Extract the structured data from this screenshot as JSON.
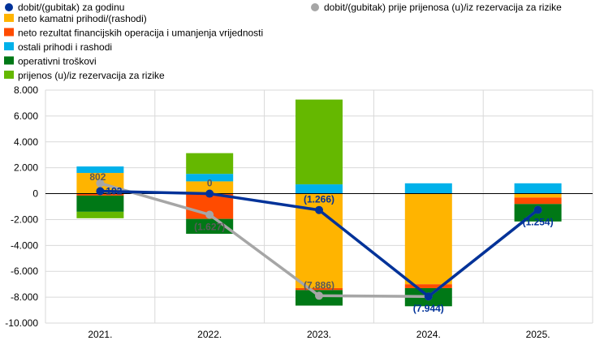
{
  "chart_data": {
    "type": "bar",
    "stacked": true,
    "categories": [
      "2021.",
      "2022.",
      "2023.",
      "2024.",
      "2025."
    ],
    "ylim": [
      -10000,
      8000
    ],
    "yticks": [
      8000,
      6000,
      4000,
      2000,
      0,
      -2000,
      -4000,
      -6000,
      -8000,
      -10000
    ],
    "ytick_labels": [
      "8.000",
      "6.000",
      "4.000",
      "2.000",
      "0",
      "-2.000",
      "-4.000",
      "-6.000",
      "-8.000",
      "-10.000"
    ],
    "grid": true,
    "legend_position": "top-left",
    "bar_series": [
      {
        "name": "neto kamatni prihodi/(rashodi)",
        "color": "#FFB400",
        "values": [
          1600,
          950,
          -7300,
          -7000,
          -300
        ]
      },
      {
        "name": "neto rezultat financijskih operacija i umanjenja vrijednosti",
        "color": "#FF4B00",
        "values": [
          -150,
          -1950,
          -150,
          -300,
          -500
        ]
      },
      {
        "name": "ostali prihodi i rashodi",
        "color": "#00B1EA",
        "values": [
          500,
          580,
          720,
          800,
          800
        ]
      },
      {
        "name": "operativni troškovi",
        "color": "#007816",
        "values": [
          -1250,
          -1150,
          -1200,
          -1400,
          -1350
        ]
      },
      {
        "name": "prijenos (u)/iz rezervacija za rizike",
        "color": "#65B800",
        "values": [
          -500,
          1600,
          6550,
          0,
          0
        ]
      }
    ],
    "line_series": [
      {
        "name": "dobit/(gubitak) za godinu",
        "color": "#003299",
        "values": [
          192,
          0,
          -1266,
          -7944,
          -1254
        ]
      },
      {
        "name": "dobit/(gubitak) prije prijenosa (u)/iz rezervacija za rizike",
        "color": "#A6A6A6",
        "values": [
          802,
          -1627,
          -7886,
          -7944,
          -1254
        ]
      }
    ],
    "data_labels": [
      {
        "text": "802",
        "category": 0,
        "value": 802,
        "series": 1,
        "color": "#595959",
        "anchor": "above-left"
      },
      {
        "text": "192",
        "category": 0,
        "value": 192,
        "series": 0,
        "color": "#003299",
        "anchor": "right"
      },
      {
        "text": "0",
        "category": 1,
        "value": 0,
        "series": 0,
        "color": "#595959",
        "anchor": "above"
      },
      {
        "text": "(1.627)",
        "category": 1,
        "value": -1627,
        "series": 1,
        "color": "#595959",
        "anchor": "below"
      },
      {
        "text": "(1.266)",
        "category": 2,
        "value": -1266,
        "series": 0,
        "color": "#003299",
        "anchor": "above"
      },
      {
        "text": "(7.886)",
        "category": 2,
        "value": -7886,
        "series": 1,
        "color": "#595959",
        "anchor": "above"
      },
      {
        "text": "(7.944)",
        "category": 3,
        "value": -7944,
        "series": 0,
        "color": "#003299",
        "anchor": "below"
      },
      {
        "text": "(1.254)",
        "category": 4,
        "value": -1254,
        "series": 0,
        "color": "#003299",
        "anchor": "below"
      }
    ]
  }
}
